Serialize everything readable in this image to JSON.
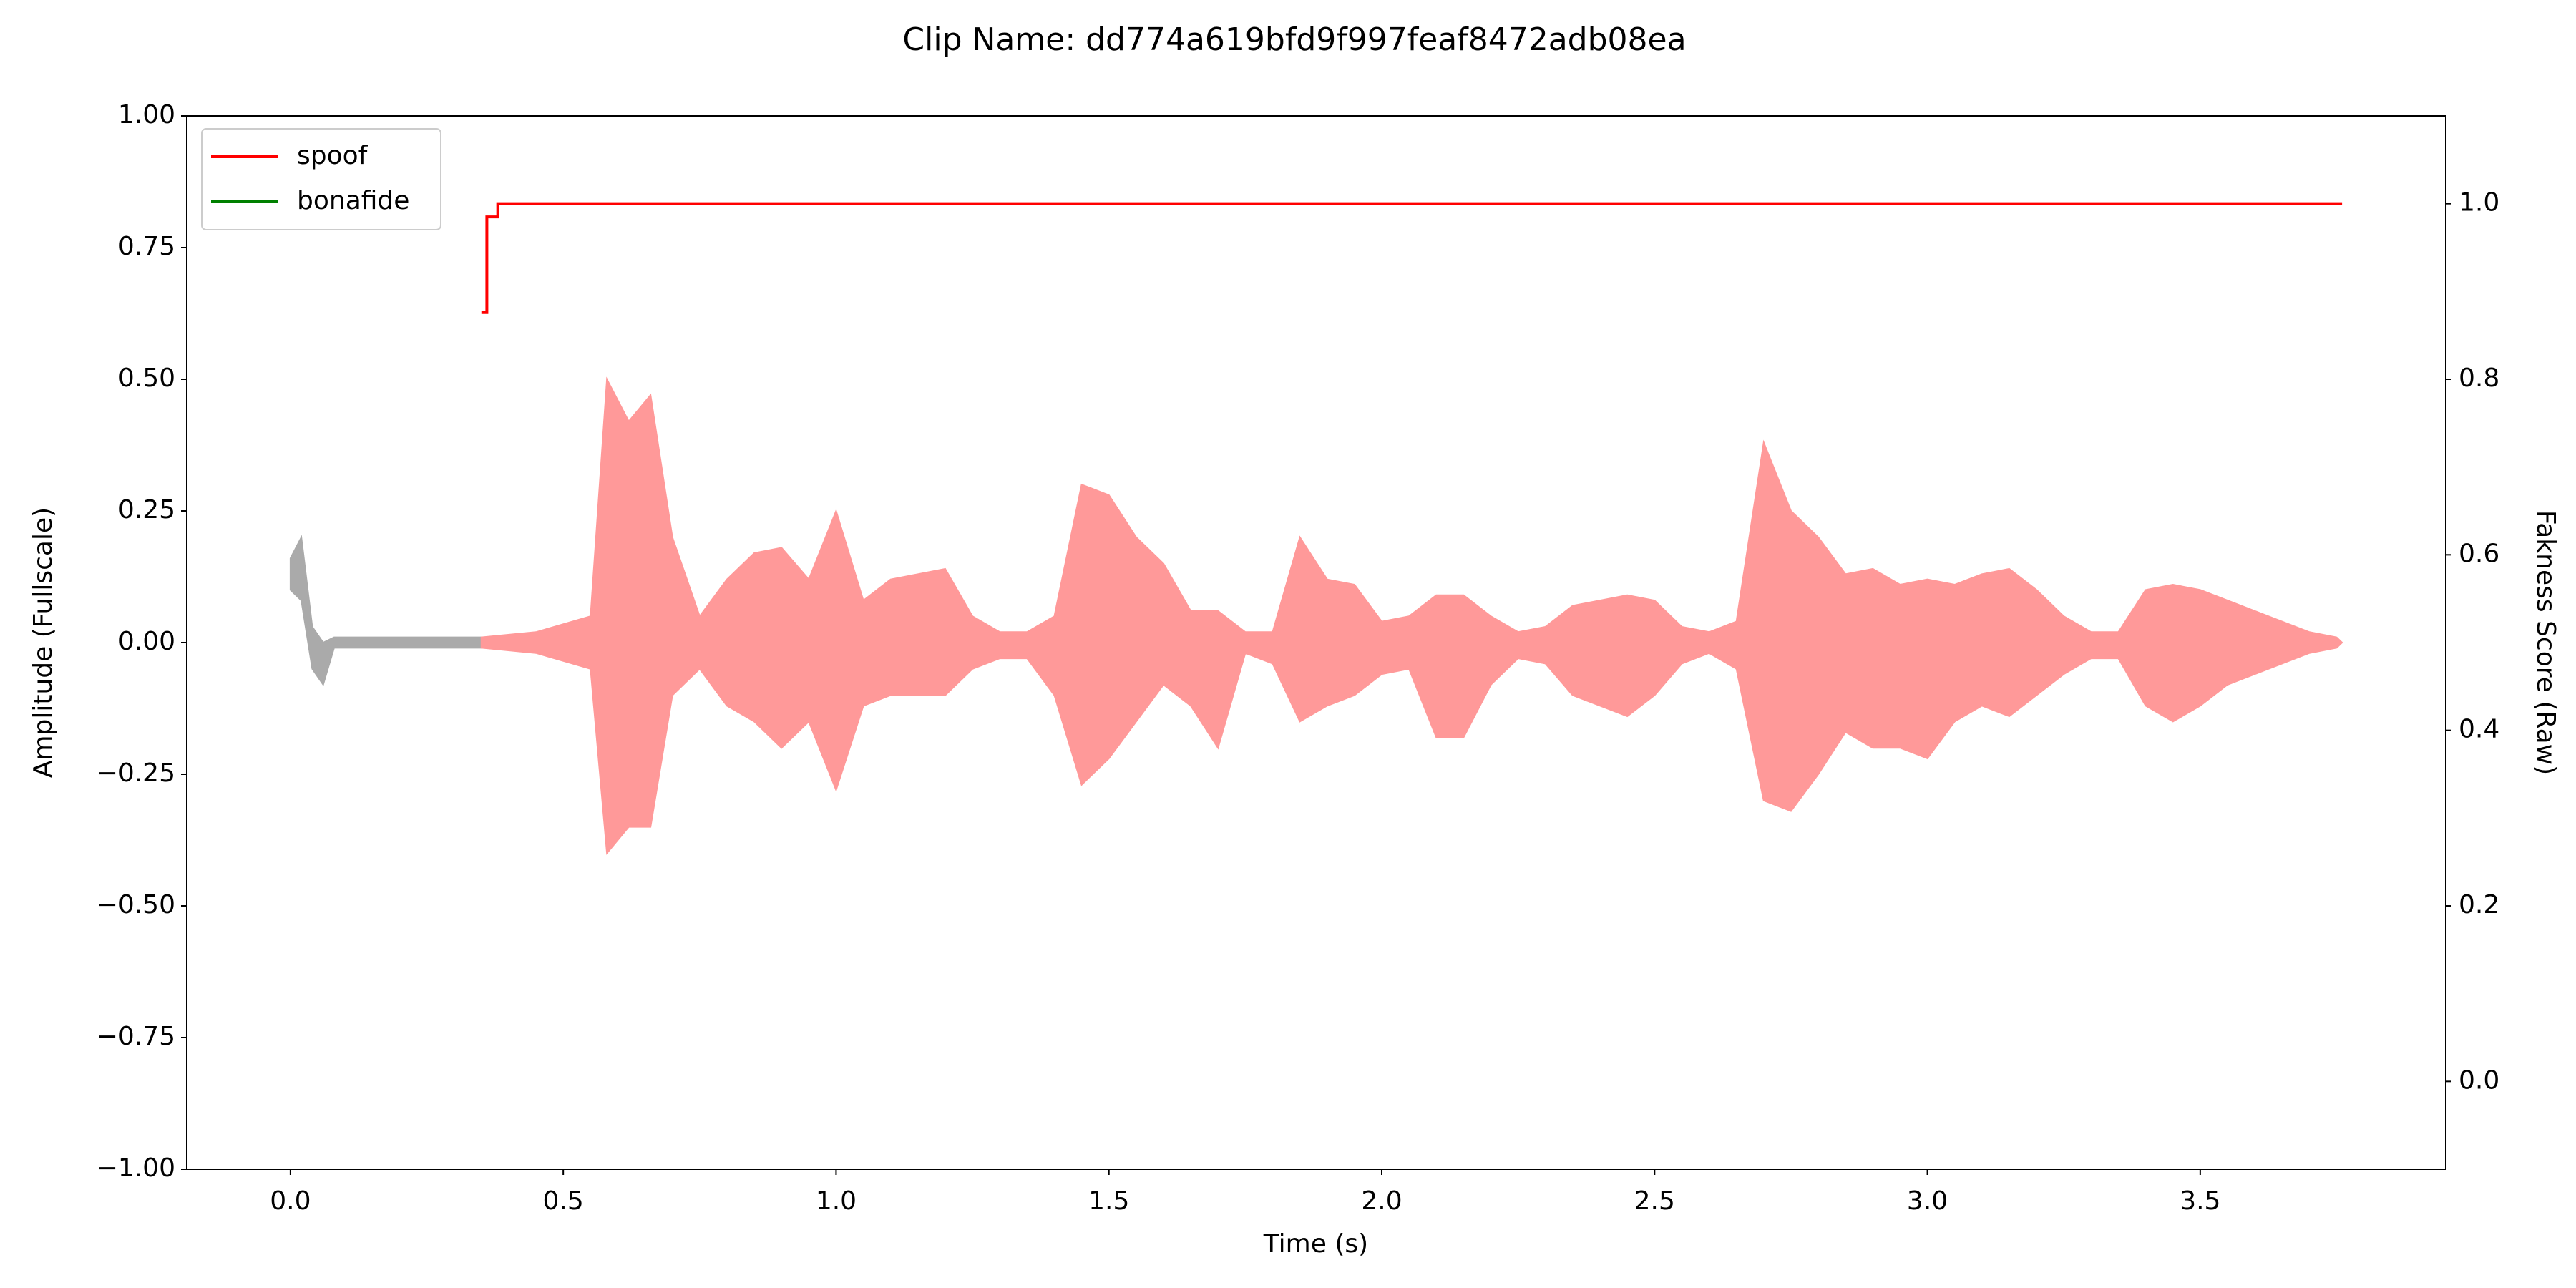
{
  "chart_data": {
    "type": "line",
    "title": "Clip Name: dd774a619bfd9f997feaf8472adb08ea",
    "x_label": "Time (s)",
    "y_label": "Amplitude (Fullscale)",
    "y2_label": "Fakness Score (Raw)",
    "xlim": [
      -0.19,
      3.95
    ],
    "ylim": [
      -1,
      1
    ],
    "y2lim": [
      -0.1,
      1.1
    ],
    "xticks": [
      {
        "value": 0,
        "label": "0.0"
      },
      {
        "value": 0.5,
        "label": "0.5"
      },
      {
        "value": 1,
        "label": "1.0"
      },
      {
        "value": 1.5,
        "label": "1.5"
      },
      {
        "value": 2,
        "label": "2.0"
      },
      {
        "value": 2.5,
        "label": "2.5"
      },
      {
        "value": 3,
        "label": "3.0"
      },
      {
        "value": 3.5,
        "label": "3.5"
      }
    ],
    "yticks": [
      {
        "value": -1,
        "label": "−1.00"
      },
      {
        "value": -0.75,
        "label": "−0.75"
      },
      {
        "value": -0.5,
        "label": "−0.50"
      },
      {
        "value": -0.25,
        "label": "−0.25"
      },
      {
        "value": 0,
        "label": "0.00"
      },
      {
        "value": 0.25,
        "label": "0.25"
      },
      {
        "value": 0.5,
        "label": "0.50"
      },
      {
        "value": 0.75,
        "label": "0.75"
      },
      {
        "value": 1,
        "label": "1.00"
      }
    ],
    "y2ticks": [
      {
        "value": 0,
        "label": "0.0"
      },
      {
        "value": 0.2,
        "label": "0.2"
      },
      {
        "value": 0.4,
        "label": "0.4"
      },
      {
        "value": 0.6,
        "label": "0.6"
      },
      {
        "value": 0.8,
        "label": "0.8"
      },
      {
        "value": 1,
        "label": "1.0"
      }
    ],
    "grid": false,
    "legend": "upper left",
    "series": [
      {
        "name": "spoof",
        "color": "#ff0000",
        "axis": "y2",
        "x": [
          0.35,
          0.36,
          0.36,
          0.38,
          0.38,
          3.76
        ],
        "values": [
          0.876,
          0.876,
          0.985,
          0.985,
          1.0,
          1.0
        ]
      },
      {
        "name": "bonafide",
        "color": "#008000",
        "axis": "y2",
        "x": [],
        "values": []
      }
    ],
    "waveform": [
      {
        "color": "#aaaaaa",
        "x": [
          0,
          0.02,
          0.04,
          0.06,
          0.08,
          0.35
        ],
        "max": [
          0.16,
          0.2,
          0.03,
          0,
          0.01,
          0.01
        ],
        "min": [
          0.1,
          0.08,
          -0.05,
          -0.08,
          -0.01,
          -0.01
        ]
      },
      {
        "color": "#ff9999",
        "x": [
          0.35,
          0.45,
          0.55,
          0.58,
          0.62,
          0.66,
          0.7,
          0.75,
          0.8,
          0.85,
          0.9,
          0.95,
          1.0,
          1.05,
          1.1,
          1.15,
          1.2,
          1.25,
          1.3,
          1.35,
          1.4,
          1.45,
          1.5,
          1.55,
          1.6,
          1.65,
          1.7,
          1.75,
          1.8,
          1.85,
          1.9,
          1.95,
          2.0,
          2.05,
          2.1,
          2.15,
          2.2,
          2.25,
          2.3,
          2.35,
          2.4,
          2.45,
          2.5,
          2.55,
          2.6,
          2.65,
          2.7,
          2.75,
          2.8,
          2.85,
          2.9,
          2.95,
          3.0,
          3.05,
          3.1,
          3.15,
          3.2,
          3.25,
          3.3,
          3.35,
          3.4,
          3.45,
          3.5,
          3.55,
          3.6,
          3.65,
          3.7,
          3.75,
          3.76
        ],
        "max": [
          0.01,
          0.02,
          0.05,
          0.5,
          0.42,
          0.47,
          0.2,
          0.05,
          0.12,
          0.17,
          0.18,
          0.12,
          0.25,
          0.08,
          0.12,
          0.13,
          0.14,
          0.05,
          0.02,
          0.02,
          0.05,
          0.3,
          0.28,
          0.2,
          0.15,
          0.06,
          0.06,
          0.02,
          0.02,
          0.2,
          0.12,
          0.11,
          0.04,
          0.05,
          0.09,
          0.09,
          0.05,
          0.02,
          0.03,
          0.07,
          0.08,
          0.09,
          0.08,
          0.03,
          0.02,
          0.04,
          0.38,
          0.25,
          0.2,
          0.13,
          0.14,
          0.11,
          0.12,
          0.11,
          0.13,
          0.14,
          0.1,
          0.05,
          0.02,
          0.02,
          0.1,
          0.11,
          0.1,
          0.08,
          0.06,
          0.04,
          0.02,
          0.01,
          0
        ],
        "min": [
          -0.01,
          -0.02,
          -0.05,
          -0.4,
          -0.35,
          -0.35,
          -0.1,
          -0.05,
          -0.12,
          -0.15,
          -0.2,
          -0.15,
          -0.28,
          -0.12,
          -0.1,
          -0.1,
          -0.1,
          -0.05,
          -0.03,
          -0.03,
          -0.1,
          -0.27,
          -0.22,
          -0.15,
          -0.08,
          -0.12,
          -0.2,
          -0.02,
          -0.04,
          -0.15,
          -0.12,
          -0.1,
          -0.06,
          -0.05,
          -0.18,
          -0.18,
          -0.08,
          -0.03,
          -0.04,
          -0.1,
          -0.12,
          -0.14,
          -0.1,
          -0.04,
          -0.02,
          -0.05,
          -0.3,
          -0.32,
          -0.25,
          -0.17,
          -0.2,
          -0.2,
          -0.22,
          -0.15,
          -0.12,
          -0.14,
          -0.1,
          -0.06,
          -0.03,
          -0.03,
          -0.12,
          -0.15,
          -0.12,
          -0.08,
          -0.06,
          -0.04,
          -0.02,
          -0.01,
          0
        ]
      }
    ]
  }
}
